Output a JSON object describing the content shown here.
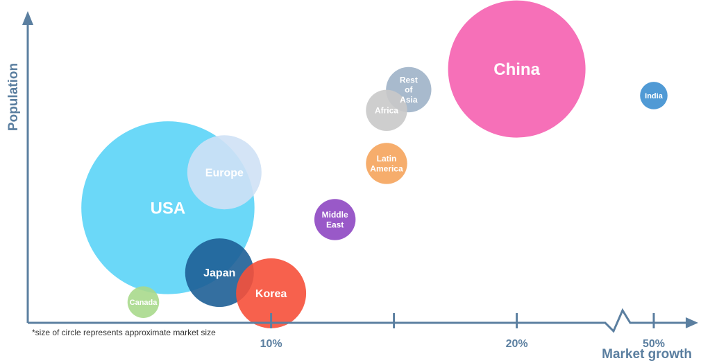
{
  "chart_data": {
    "type": "scatter",
    "xlabel": "Market growth",
    "ylabel": "Population",
    "x_ticks": [
      {
        "label": "10%",
        "value": 10
      },
      {
        "label": "",
        "value": 15
      },
      {
        "label": "20%",
        "value": 20
      },
      {
        "label": "50%",
        "value": 50
      }
    ],
    "axis_break": true,
    "footnote": "*size of circle represents approximate market size",
    "series": [
      {
        "label_lines": [
          "China"
        ],
        "x": 20,
        "y": 0.86,
        "size": 1.0,
        "color": "#f560b0"
      },
      {
        "label_lines": [
          "India"
        ],
        "x": 50,
        "y": 0.77,
        "size": 0.2,
        "color": "#3d8fd0"
      },
      {
        "label_lines": [
          "Rest",
          "of",
          "Asia"
        ],
        "x": 15.6,
        "y": 0.79,
        "size": 0.33,
        "color": "#9fb3c8"
      },
      {
        "label_lines": [
          "Africa"
        ],
        "x": 14.7,
        "y": 0.72,
        "size": 0.3,
        "color": "#c9c9c9"
      },
      {
        "label_lines": [
          "Latin",
          "America"
        ],
        "x": 14.7,
        "y": 0.54,
        "size": 0.3,
        "color": "#f5a45c"
      },
      {
        "label_lines": [
          "Middle",
          "East"
        ],
        "x": 12.6,
        "y": 0.35,
        "size": 0.3,
        "color": "#8e47c2"
      },
      {
        "label_lines": [
          "USA"
        ],
        "x": 5.8,
        "y": 0.39,
        "size": 1.26,
        "color": "#5bd4f7"
      },
      {
        "label_lines": [
          "Europe"
        ],
        "x": 8.1,
        "y": 0.51,
        "size": 0.54,
        "color": "#cfe1f5"
      },
      {
        "label_lines": [
          "Japan"
        ],
        "x": 7.9,
        "y": 0.17,
        "size": 0.5,
        "color": "#1e5f96"
      },
      {
        "label_lines": [
          "Korea"
        ],
        "x": 10.0,
        "y": 0.1,
        "size": 0.51,
        "color": "#f6503a"
      },
      {
        "label_lines": [
          "Canada"
        ],
        "x": 4.8,
        "y": 0.07,
        "size": 0.23,
        "color": "#a9d98c"
      }
    ],
    "axis_color": "#5b7fa0"
  }
}
